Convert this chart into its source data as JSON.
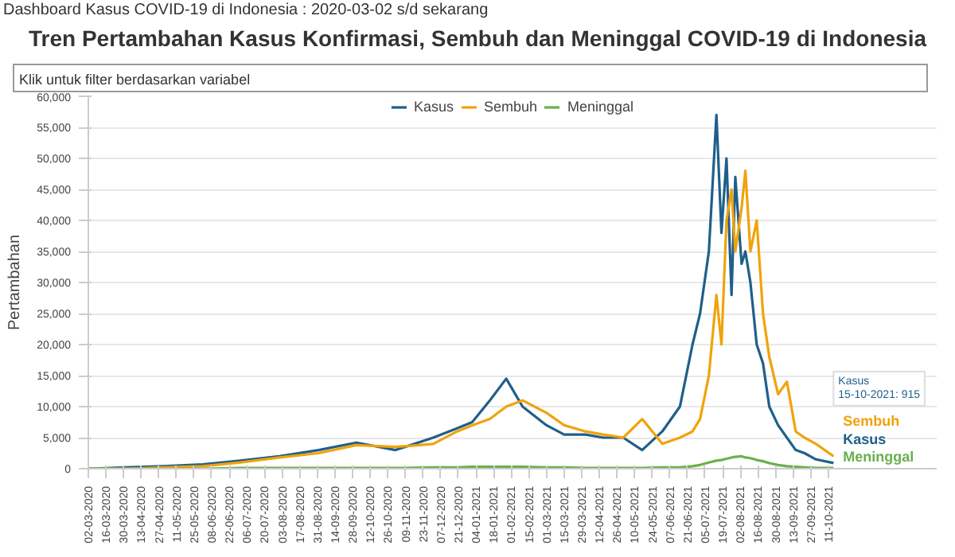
{
  "chart_data": {
    "type": "line",
    "title": "Tren Pertambahan Kasus Konfirmasi, Sembuh dan Meninggal COVID-19 di Indonesia",
    "ylabel": "Pertambahan",
    "annotations": [
      "Dashboard Kasus COVID-19 di Indonesia : 2020-03-02 s/d sekarang",
      "Klik untuk filter berdasarkan variabel",
      "Kasus\n15-10-2021: 915"
    ],
    "x": [
      "2020-03-02",
      "2020-04-01",
      "2020-05-01",
      "2020-06-01",
      "2020-07-01",
      "2020-08-01",
      "2020-09-01",
      "2020-10-01",
      "2020-11-01",
      "2020-12-01",
      "2020-12-20",
      "2021-01-01",
      "2021-01-15",
      "2021-01-28",
      "2021-02-10",
      "2021-03-01",
      "2021-03-15",
      "2021-04-01",
      "2021-04-15",
      "2021-05-01",
      "2021-05-16",
      "2021-06-01",
      "2021-06-15",
      "2021-06-25",
      "2021-07-01",
      "2021-07-08",
      "2021-07-14",
      "2021-07-18",
      "2021-07-22",
      "2021-07-26",
      "2021-07-29",
      "2021-08-03",
      "2021-08-06",
      "2021-08-10",
      "2021-08-15",
      "2021-08-20",
      "2021-08-25",
      "2021-09-01",
      "2021-09-08",
      "2021-09-15",
      "2021-09-22",
      "2021-10-01",
      "2021-10-15"
    ],
    "series": [
      {
        "name": "Kasus",
        "color": "#1f5f8b",
        "values": [
          0,
          200,
          400,
          700,
          1300,
          2000,
          3000,
          4200,
          3000,
          5000,
          6500,
          7500,
          11000,
          14500,
          10000,
          7000,
          5500,
          5500,
          5000,
          5000,
          3000,
          6000,
          10000,
          20000,
          25000,
          35000,
          57000,
          38000,
          50000,
          28000,
          47000,
          33000,
          35000,
          30000,
          20000,
          17000,
          10000,
          7000,
          5000,
          3000,
          2500,
          1500,
          915
        ]
      },
      {
        "name": "Sembuh",
        "color": "#f0a30a",
        "values": [
          0,
          0,
          200,
          400,
          1000,
          1800,
          2500,
          3800,
          3500,
          4000,
          6000,
          7000,
          8000,
          10000,
          11000,
          9000,
          7000,
          6000,
          5500,
          5000,
          8000,
          4000,
          5000,
          6000,
          8000,
          15000,
          28000,
          20000,
          40000,
          45000,
          35000,
          42000,
          48000,
          35000,
          40000,
          25000,
          18000,
          12000,
          14000,
          6000,
          5000,
          4000,
          2000
        ]
      },
      {
        "name": "Meninggal",
        "color": "#6ab04c",
        "values": [
          0,
          0,
          0,
          0,
          100,
          100,
          100,
          100,
          100,
          200,
          200,
          300,
          300,
          300,
          300,
          200,
          200,
          100,
          100,
          100,
          100,
          200,
          200,
          400,
          600,
          1000,
          1300,
          1400,
          1600,
          1800,
          1900,
          2000,
          1800,
          1700,
          1400,
          1200,
          900,
          600,
          400,
          300,
          200,
          100,
          100
        ]
      }
    ],
    "xlim": [
      "2020-03-02",
      "2022-01-05"
    ],
    "xticks": [
      {
        "value": "2020-03-02",
        "label": "02-03-2020"
      },
      {
        "value": "2020-03-16",
        "label": "16-03-2020"
      },
      {
        "value": "2020-03-30",
        "label": "30-03-2020"
      },
      {
        "value": "2020-04-13",
        "label": "13-04-2020"
      },
      {
        "value": "2020-04-27",
        "label": "27-04-2020"
      },
      {
        "value": "2020-05-11",
        "label": "11-05-2020"
      },
      {
        "value": "2020-05-25",
        "label": "25-05-2020"
      },
      {
        "value": "2020-06-08",
        "label": "08-06-2020"
      },
      {
        "value": "2020-06-22",
        "label": "22-06-2020"
      },
      {
        "value": "2020-07-06",
        "label": "06-07-2020"
      },
      {
        "value": "2020-07-20",
        "label": "20-07-2020"
      },
      {
        "value": "2020-08-03",
        "label": "03-08-2020"
      },
      {
        "value": "2020-08-17",
        "label": "17-08-2020"
      },
      {
        "value": "2020-08-31",
        "label": "31-08-2020"
      },
      {
        "value": "2020-09-14",
        "label": "14-09-2020"
      },
      {
        "value": "2020-09-28",
        "label": "28-09-2020"
      },
      {
        "value": "2020-10-12",
        "label": "12-10-2020"
      },
      {
        "value": "2020-10-26",
        "label": "26-10-2020"
      },
      {
        "value": "2020-11-09",
        "label": "09-11-2020"
      },
      {
        "value": "2020-11-23",
        "label": "23-11-2020"
      },
      {
        "value": "2020-12-07",
        "label": "07-12-2020"
      },
      {
        "value": "2020-12-21",
        "label": "21-12-2020"
      },
      {
        "value": "2021-01-04",
        "label": "04-01-2021"
      },
      {
        "value": "2021-01-18",
        "label": "18-01-2021"
      },
      {
        "value": "2021-02-01",
        "label": "01-02-2021"
      },
      {
        "value": "2021-02-15",
        "label": "15-02-2021"
      },
      {
        "value": "2021-03-01",
        "label": "01-03-2021"
      },
      {
        "value": "2021-03-15",
        "label": "15-03-2021"
      },
      {
        "value": "2021-03-29",
        "label": "29-03-2021"
      },
      {
        "value": "2021-04-12",
        "label": "12-04-2021"
      },
      {
        "value": "2021-04-26",
        "label": "26-04-2021"
      },
      {
        "value": "2021-05-10",
        "label": "10-05-2021"
      },
      {
        "value": "2021-05-24",
        "label": "24-05-2021"
      },
      {
        "value": "2021-06-07",
        "label": "07-06-2021"
      },
      {
        "value": "2021-06-21",
        "label": "21-06-2021"
      },
      {
        "value": "2021-07-05",
        "label": "05-07-2021"
      },
      {
        "value": "2021-07-19",
        "label": "19-07-2021"
      },
      {
        "value": "2021-08-02",
        "label": "02-08-2021"
      },
      {
        "value": "2021-08-16",
        "label": "16-08-2021"
      },
      {
        "value": "2021-08-30",
        "label": "30-08-2021"
      },
      {
        "value": "2021-09-13",
        "label": "13-09-2021"
      },
      {
        "value": "2021-09-27",
        "label": "27-09-2021"
      },
      {
        "value": "2021-10-11",
        "label": "11-10-2021"
      }
    ],
    "ylim": [
      0,
      60000
    ],
    "yticks": [
      0,
      {
        "value": 5000,
        "label": "5,000"
      },
      {
        "value": 10000,
        "label": "10,000"
      },
      {
        "value": 15000,
        "label": "15,000"
      },
      {
        "value": 20000,
        "label": "20,000"
      },
      {
        "value": 25000,
        "label": "25,000"
      },
      {
        "value": 30000,
        "label": "30,000"
      },
      {
        "value": 35000,
        "label": "35,000"
      },
      {
        "value": 40000,
        "label": "40,000"
      },
      {
        "value": 45000,
        "label": "45,000"
      },
      {
        "value": 50000,
        "label": "50,000"
      },
      {
        "value": 55000,
        "label": "55,000"
      },
      {
        "value": 60000,
        "label": "60,000"
      }
    ],
    "grid": "y",
    "legend": "top",
    "marker": "none",
    "line_style": "solid"
  }
}
